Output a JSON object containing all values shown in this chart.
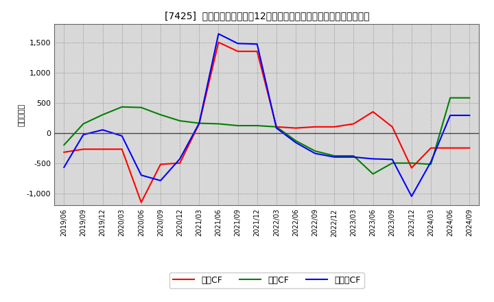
{
  "title": "[7425]  キャッシュフローの12か月移動合計の対前年同期増減額の推移",
  "ylabel": "（百万円）",
  "background_color": "#ffffff",
  "plot_bg_color": "#d8d8d8",
  "grid_color": "#888888",
  "x_labels": [
    "2019/06",
    "2019/09",
    "2019/12",
    "2020/03",
    "2020/06",
    "2020/09",
    "2020/12",
    "2021/03",
    "2021/06",
    "2021/09",
    "2021/12",
    "2022/03",
    "2022/06",
    "2022/09",
    "2022/12",
    "2023/03",
    "2023/06",
    "2023/09",
    "2023/12",
    "2024/03",
    "2024/06",
    "2024/09"
  ],
  "operating_cf": [
    -320,
    -270,
    -270,
    -270,
    -1150,
    -520,
    -500,
    150,
    1500,
    1350,
    1350,
    100,
    80,
    100,
    100,
    150,
    350,
    100,
    -580,
    -250,
    -250,
    -250
  ],
  "investing_cf": [
    -200,
    150,
    300,
    430,
    420,
    300,
    200,
    160,
    150,
    120,
    120,
    100,
    -130,
    -300,
    -380,
    -380,
    -680,
    -500,
    -500,
    -520,
    580,
    580
  ],
  "free_cf": [
    -570,
    -30,
    50,
    -50,
    -700,
    -790,
    -430,
    160,
    1640,
    1480,
    1470,
    80,
    -160,
    -340,
    -400,
    -400,
    -430,
    -440,
    -1050,
    -480,
    290,
    290
  ],
  "ylim": [
    -1200,
    1800
  ],
  "yticks": [
    -1000,
    -500,
    0,
    500,
    1000,
    1500
  ],
  "line_colors": {
    "operating": "#ff0000",
    "investing": "#008000",
    "free": "#0000ff"
  },
  "legend_labels": {
    "operating": "営業CF",
    "investing": "投資CF",
    "free": "フリーCF"
  }
}
